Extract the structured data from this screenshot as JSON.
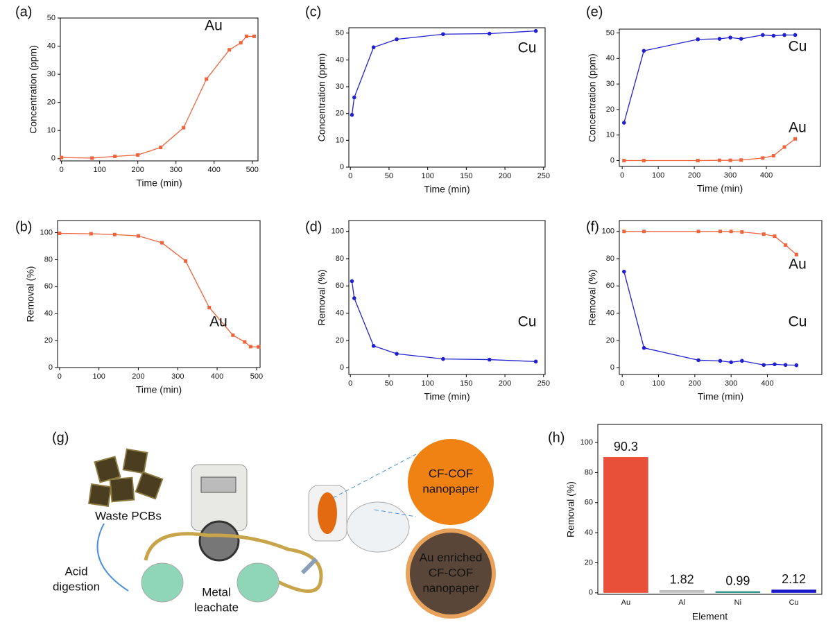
{
  "chart_data": [
    {
      "type": "line",
      "label": "(a)",
      "xlabel": "Time (min)",
      "ylabel": "Concentration (ppm)",
      "x": [
        0,
        80,
        140,
        200,
        260,
        320,
        380,
        440,
        470,
        485,
        505
      ],
      "series": [
        {
          "name": "Au",
          "color": "#f0643c",
          "marker": "square",
          "values": [
            0.4,
            0.2,
            0.8,
            1.3,
            4,
            11,
            28.3,
            38.7,
            41.2,
            43.5,
            43.5
          ]
        }
      ],
      "xlim": [
        -3,
        515
      ],
      "ylim": [
        -0.8,
        50
      ],
      "xticks": [
        0,
        100,
        200,
        300,
        400,
        500
      ],
      "yticks": [
        0,
        10,
        20,
        30,
        40,
        50
      ]
    },
    {
      "type": "line",
      "label": "(b)",
      "xlabel": "Time (min)",
      "ylabel": "Removal (%)",
      "x": [
        0,
        80,
        140,
        200,
        260,
        320,
        380,
        440,
        470,
        485,
        505
      ],
      "series": [
        {
          "name": "Au",
          "color": "#f0643c",
          "marker": "square",
          "values": [
            99.5,
            99.2,
            98.6,
            97.6,
            92.5,
            79,
            44.5,
            24,
            19,
            15.5,
            15.3
          ]
        }
      ],
      "xlim": [
        -5,
        509
      ],
      "ylim": [
        0,
        109
      ],
      "xticks": [
        0,
        100,
        200,
        300,
        400,
        500
      ],
      "yticks": [
        0,
        20,
        40,
        60,
        80,
        100
      ]
    },
    {
      "type": "line",
      "label": "(c)",
      "xlabel": "Time (min)",
      "ylabel": "Concentration (ppm)",
      "x": [
        2,
        5,
        30,
        60,
        120,
        180,
        240
      ],
      "series": [
        {
          "name": "Cu",
          "color": "#2020d0",
          "marker": "circle",
          "values": [
            19.5,
            26,
            44.7,
            47.7,
            49.6,
            49.8,
            50.8
          ]
        }
      ],
      "xlim": [
        -2,
        252
      ],
      "ylim": [
        0,
        52
      ],
      "xticks": [
        0,
        50,
        100,
        150,
        200,
        250
      ],
      "yticks": [
        0,
        10,
        20,
        30,
        40,
        50
      ]
    },
    {
      "type": "line",
      "label": "(d)",
      "xlabel": "Time (min)",
      "ylabel": "Removal (%)",
      "x": [
        2,
        5,
        30,
        60,
        120,
        180,
        240
      ],
      "series": [
        {
          "name": "Cu",
          "color": "#2020d0",
          "marker": "circle",
          "values": [
            63.5,
            51,
            16,
            10.2,
            6.4,
            5.9,
            4.5
          ]
        }
      ],
      "xlim": [
        -2,
        252
      ],
      "ylim": [
        -5,
        108
      ],
      "xticks": [
        0,
        50,
        100,
        150,
        200,
        250
      ],
      "yticks": [
        0,
        20,
        40,
        60,
        80,
        100
      ]
    },
    {
      "type": "line",
      "label": "(e)",
      "xlabel": "Time (min)",
      "ylabel": "Concentration (ppm)",
      "x": [
        5,
        60,
        210,
        270,
        300,
        330,
        390,
        420,
        450,
        480
      ],
      "series": [
        {
          "name": "Cu",
          "color": "#2020d0",
          "marker": "circle",
          "values": [
            14.8,
            43,
            47.5,
            47.7,
            48.2,
            47.7,
            49.2,
            48.9,
            49.2,
            49.2
          ]
        },
        {
          "name": "Au",
          "color": "#f0643c",
          "marker": "square",
          "values": [
            0,
            0,
            0,
            0.1,
            0.1,
            0.2,
            1,
            1.9,
            5.3,
            8.5
          ]
        }
      ],
      "xlim": [
        -8,
        550
      ],
      "ylim": [
        -2.3,
        51.5
      ],
      "xticks": [
        0,
        100,
        200,
        300,
        400
      ],
      "yticks": [
        0,
        10,
        20,
        30,
        40,
        50
      ]
    },
    {
      "type": "line",
      "label": "(f)",
      "xlabel": "Time (min)",
      "ylabel": "Removal (%)",
      "x": [
        5,
        60,
        210,
        270,
        300,
        330,
        390,
        420,
        450,
        480
      ],
      "series": [
        {
          "name": "Au",
          "color": "#f0643c",
          "marker": "square",
          "values": [
            100,
            100,
            100,
            100,
            100,
            99.6,
            98,
            96.5,
            90,
            83
          ]
        },
        {
          "name": "Cu",
          "color": "#2020d0",
          "marker": "circle",
          "values": [
            70.5,
            14.5,
            5.5,
            5,
            4,
            5,
            2,
            2.5,
            2,
            1.8
          ]
        }
      ],
      "xlim": [
        -8,
        550
      ],
      "ylim": [
        -5,
        108
      ],
      "xticks": [
        0,
        100,
        200,
        300,
        400
      ],
      "yticks": [
        0,
        20,
        40,
        60,
        80,
        100
      ]
    },
    {
      "type": "bar",
      "label": "(h)",
      "xlabel": "Element",
      "ylabel": "Removal (%)",
      "categories": [
        "Au",
        "Al",
        "Ni",
        "Cu"
      ],
      "values": [
        90.3,
        1.82,
        0.99,
        2.12
      ],
      "colors": [
        "#e8503a",
        "#c0c0c0",
        "#17867a",
        "#1a1acc"
      ],
      "label_colors": [
        "#f0643c",
        "#a0a0a0",
        "#1f6b1f",
        "#1a1acc"
      ],
      "ylim": [
        -1,
        112
      ],
      "yticks": [
        0,
        20,
        40,
        60,
        80,
        100
      ]
    }
  ],
  "diagram": {
    "label": "(g)",
    "waste": [
      "Waste PCBs"
    ],
    "acid": [
      "Acid",
      "digestion"
    ],
    "leachate": [
      "Metal",
      "leachate"
    ],
    "paper": [
      "CF-COF",
      "nanopaper"
    ],
    "enriched": [
      "Au enriched",
      "CF-COF",
      "nanopaper"
    ]
  }
}
